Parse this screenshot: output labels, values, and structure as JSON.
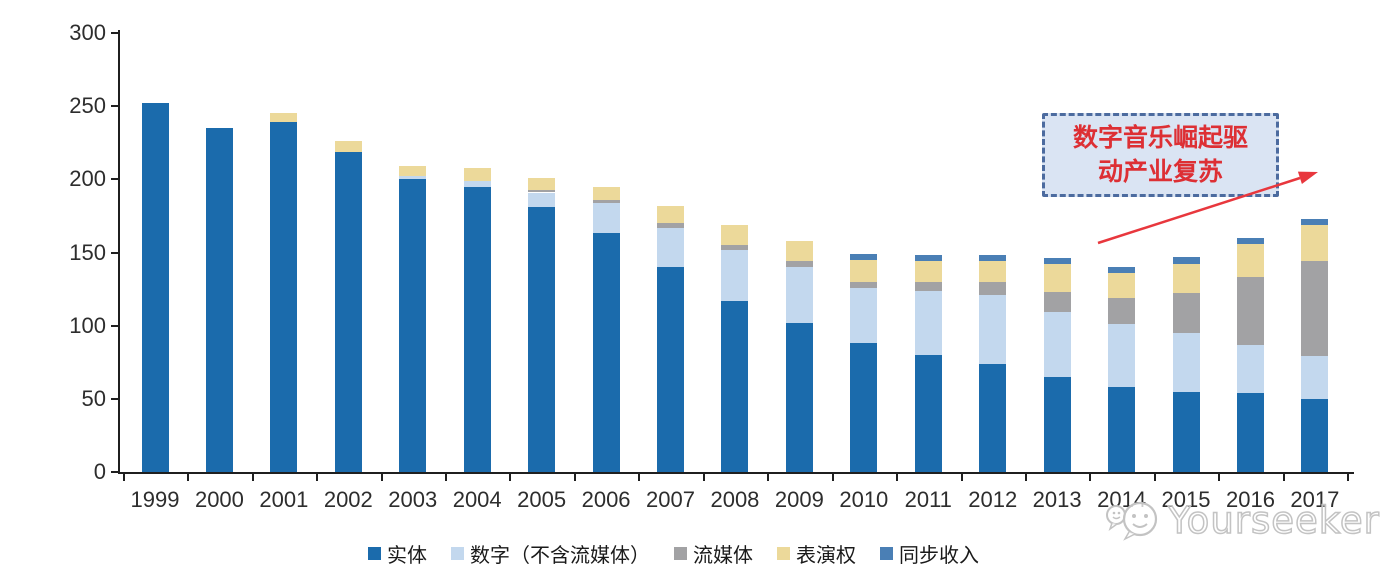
{
  "chart_data": {
    "type": "bar",
    "stacked": true,
    "title": "",
    "xlabel": "",
    "ylabel": "",
    "categories": [
      "1999",
      "2000",
      "2001",
      "2002",
      "2003",
      "2004",
      "2005",
      "2006",
      "2007",
      "2008",
      "2009",
      "2010",
      "2011",
      "2012",
      "2013",
      "2014",
      "2015",
      "2016",
      "2017"
    ],
    "series": [
      {
        "name": "实体",
        "color": "#1b6bac",
        "values": [
          252,
          235,
          239,
          219,
          200,
          195,
          181,
          163,
          140,
          117,
          102,
          88,
          80,
          74,
          65,
          58,
          55,
          54,
          50
        ]
      },
      {
        "name": "数字（不含流媒体）",
        "color": "#c3d8ee",
        "values": [
          0,
          0,
          0,
          0,
          2,
          4,
          10,
          21,
          27,
          35,
          38,
          38,
          44,
          47,
          44,
          43,
          40,
          33,
          29
        ]
      },
      {
        "name": "流媒体",
        "color": "#a2a2a4",
        "values": [
          0,
          0,
          0,
          0,
          0,
          0,
          2,
          2,
          3,
          3,
          4,
          4,
          6,
          9,
          14,
          18,
          27,
          46,
          65
        ]
      },
      {
        "name": "表演权",
        "color": "#ecd99a",
        "values": [
          0,
          0,
          6,
          7,
          7,
          9,
          8,
          9,
          12,
          14,
          14,
          15,
          14,
          14,
          19,
          17,
          20,
          23,
          25
        ]
      },
      {
        "name": "同步收入",
        "color": "#4a7fb5",
        "values": [
          0,
          0,
          0,
          0,
          0,
          0,
          0,
          0,
          0,
          0,
          0,
          4,
          4,
          4,
          4,
          4,
          5,
          4,
          4
        ]
      }
    ],
    "ylim": [
      0,
      300
    ],
    "yticks": [
      0,
      50,
      100,
      150,
      200,
      250,
      300
    ],
    "grid": false,
    "legend_position": "bottom"
  },
  "annotation": {
    "line1": "数字音乐崛起驱",
    "line2": "动产业复苏"
  },
  "watermark": {
    "text": "Yourseeker"
  },
  "colors": {
    "axis": "#1f1f1f",
    "tick_label": "#2d2d2d",
    "annotation_fill": "#dae4f3",
    "annotation_border": "#4c6b9f",
    "annotation_text": "#dd2f34",
    "arrow": "#e8373d",
    "watermark": "#c3c3c3"
  }
}
